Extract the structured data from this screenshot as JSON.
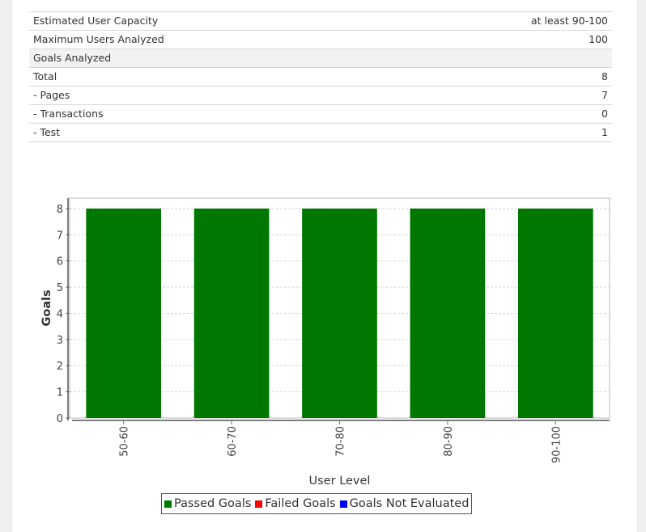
{
  "summary": {
    "rows": [
      {
        "label": "Estimated User Capacity",
        "value": "at least 90-100"
      },
      {
        "label": "Maximum Users Analyzed",
        "value": "100"
      },
      {
        "label": "Goals Analyzed",
        "value": ""
      },
      {
        "label": "Total",
        "value": "8"
      },
      {
        "label": "- Pages",
        "value": "7"
      },
      {
        "label": "- Transactions",
        "value": "0"
      },
      {
        "label": "- Test",
        "value": "1"
      }
    ]
  },
  "chart_data": {
    "type": "bar",
    "categories": [
      "50-60",
      "60-70",
      "70-80",
      "80-90",
      "90-100"
    ],
    "series": [
      {
        "name": "Passed Goals",
        "color": "#007800",
        "values": [
          8,
          8,
          8,
          8,
          8
        ]
      },
      {
        "name": "Failed Goals",
        "color": "#ff0000",
        "values": [
          0,
          0,
          0,
          0,
          0
        ]
      },
      {
        "name": "Goals Not Evaluated",
        "color": "#0000ff",
        "values": [
          0,
          0,
          0,
          0,
          0
        ]
      }
    ],
    "stacked": true,
    "xlabel": "User Level",
    "ylabel": "Goals",
    "ylim": [
      0,
      8.4
    ],
    "yticks": [
      0,
      1,
      2,
      3,
      4,
      5,
      6,
      7,
      8
    ],
    "grid": true,
    "legend_position": "bottom"
  }
}
